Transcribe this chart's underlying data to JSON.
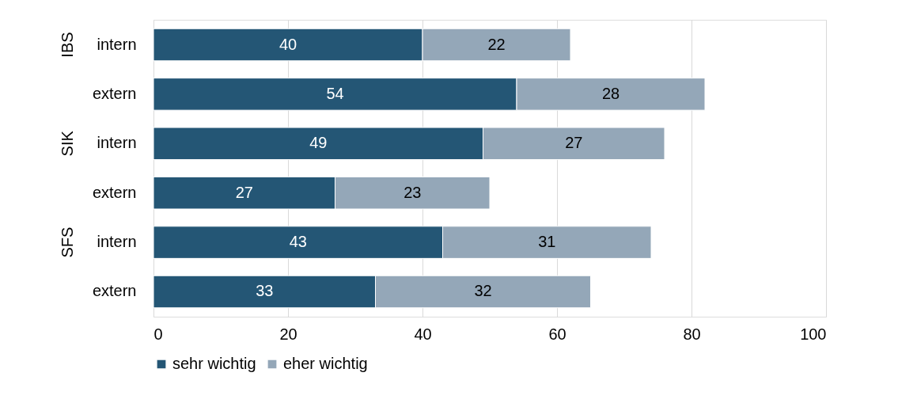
{
  "chart_data": {
    "type": "bar",
    "orientation": "horizontal",
    "stacked": true,
    "categories": [
      "intern",
      "extern",
      "intern",
      "extern",
      "intern",
      "extern"
    ],
    "series": [
      {
        "name": "sehr wichtig",
        "color": "#245675",
        "values": [
          40,
          54,
          49,
          27,
          43,
          33
        ]
      },
      {
        "name": "eher wichtig",
        "color": "#94a7b8",
        "values": [
          22,
          28,
          27,
          23,
          31,
          32
        ]
      }
    ],
    "annotations": [
      "IBS",
      "SIK",
      "SFS"
    ],
    "xlim": [
      0,
      100
    ],
    "xticks": [
      0,
      20,
      40,
      60,
      80,
      100
    ],
    "grid": "x",
    "legend": "bottom",
    "data_labels": true
  }
}
